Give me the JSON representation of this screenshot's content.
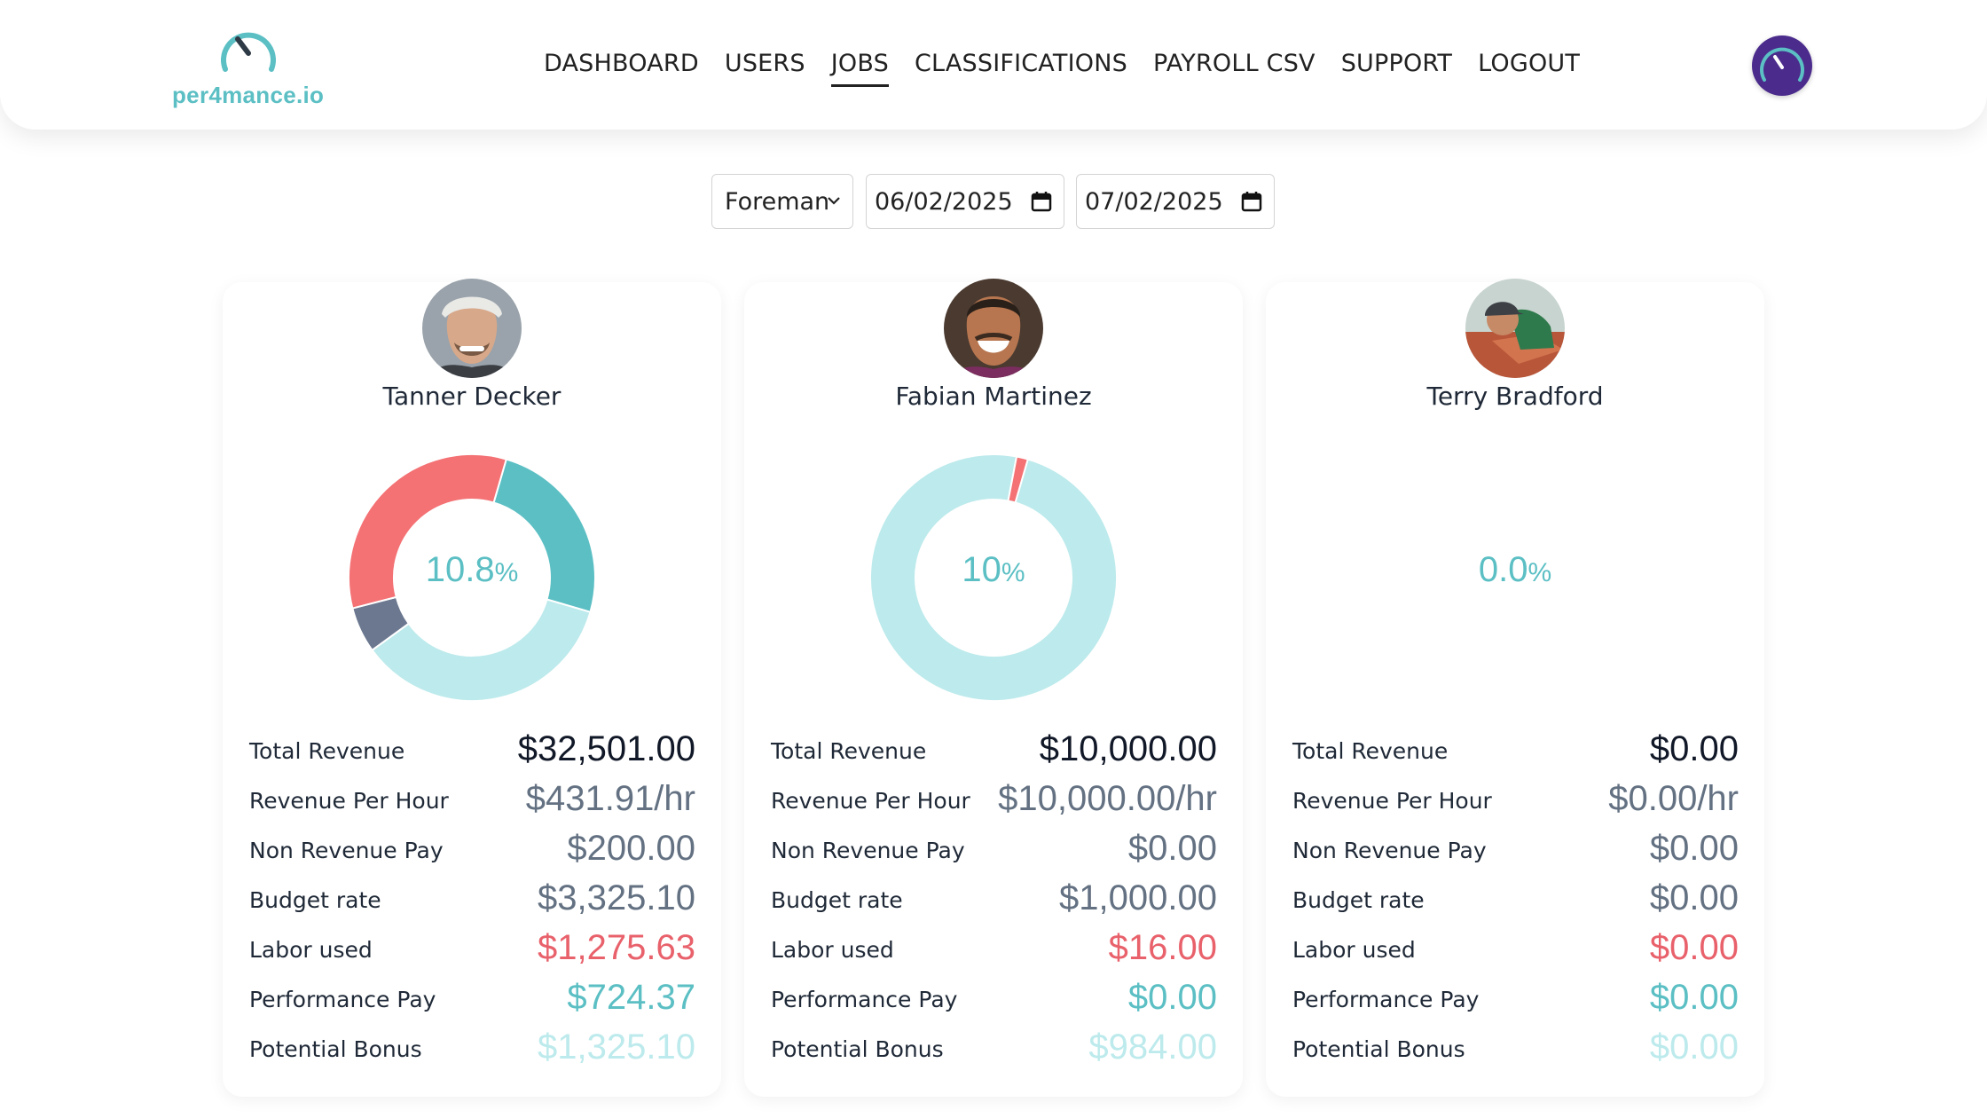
{
  "brand": {
    "name": "per4mance.io",
    "accent": "#5bbfc4"
  },
  "nav": {
    "items": [
      {
        "label": "DASHBOARD",
        "active": false
      },
      {
        "label": "USERS",
        "active": false
      },
      {
        "label": "JOBS",
        "active": true
      },
      {
        "label": "CLASSIFICATIONS",
        "active": false
      },
      {
        "label": "PAYROLL CSV",
        "active": false
      },
      {
        "label": "SUPPORT",
        "active": false
      },
      {
        "label": "LOGOUT",
        "active": false
      }
    ]
  },
  "filters": {
    "role": "Foreman",
    "start_date": "06/02/2025",
    "end_date": "07/02/2025"
  },
  "colors": {
    "teal": "#5bbfc4",
    "light_teal": "#bdeaec",
    "red": "#f47174",
    "slate": "#6b7890"
  },
  "cards": [
    {
      "name": "Tanner Decker",
      "percent": "10.8",
      "percent_unit": "%",
      "donut": [
        {
          "segment": "performance",
          "fraction": 0.25,
          "color": "#5bbfc4"
        },
        {
          "segment": "remaining",
          "fraction": 0.355,
          "color": "#bdeaec"
        },
        {
          "segment": "non_revenue",
          "fraction": 0.06,
          "color": "#6b7890"
        },
        {
          "segment": "labor",
          "fraction": 0.335,
          "color": "#f47174"
        }
      ],
      "stats": {
        "total_revenue": {
          "label": "Total Revenue",
          "value": "$32,501.00"
        },
        "revenue_per_hour": {
          "label": "Revenue Per Hour",
          "value": "$431.91/hr"
        },
        "non_revenue_pay": {
          "label": "Non Revenue Pay",
          "value": "$200.00"
        },
        "budget_rate": {
          "label": "Budget rate",
          "value": "$3,325.10"
        },
        "labor_used": {
          "label": "Labor used",
          "value": "$1,275.63"
        },
        "performance_pay": {
          "label": "Performance Pay",
          "value": "$724.37"
        },
        "potential_bonus": {
          "label": "Potential Bonus",
          "value": "$1,325.10"
        }
      }
    },
    {
      "name": "Fabian Martinez",
      "percent": "10",
      "percent_unit": "%",
      "donut": [
        {
          "segment": "remaining",
          "fraction": 0.985,
          "color": "#bdeaec"
        },
        {
          "segment": "labor",
          "fraction": 0.015,
          "color": "#f47174"
        }
      ],
      "stats": {
        "total_revenue": {
          "label": "Total Revenue",
          "value": "$10,000.00"
        },
        "revenue_per_hour": {
          "label": "Revenue Per Hour",
          "value": "$10,000.00/hr"
        },
        "non_revenue_pay": {
          "label": "Non Revenue Pay",
          "value": "$0.00"
        },
        "budget_rate": {
          "label": "Budget rate",
          "value": "$1,000.00"
        },
        "labor_used": {
          "label": "Labor used",
          "value": "$16.00"
        },
        "performance_pay": {
          "label": "Performance Pay",
          "value": "$0.00"
        },
        "potential_bonus": {
          "label": "Potential Bonus",
          "value": "$984.00"
        }
      }
    },
    {
      "name": "Terry Bradford",
      "percent": "0.0",
      "percent_unit": "%",
      "donut": [],
      "stats": {
        "total_revenue": {
          "label": "Total Revenue",
          "value": "$0.00"
        },
        "revenue_per_hour": {
          "label": "Revenue Per Hour",
          "value": "$0.00/hr"
        },
        "non_revenue_pay": {
          "label": "Non Revenue Pay",
          "value": "$0.00"
        },
        "budget_rate": {
          "label": "Budget rate",
          "value": "$0.00"
        },
        "labor_used": {
          "label": "Labor used",
          "value": "$0.00"
        },
        "performance_pay": {
          "label": "Performance Pay",
          "value": "$0.00"
        },
        "potential_bonus": {
          "label": "Potential Bonus",
          "value": "$0.00"
        }
      }
    }
  ],
  "icons": {
    "logo": "speedometer-icon",
    "profile": "speedometer-avatar-icon",
    "select": "chevron-down-icon",
    "date": "calendar-icon"
  }
}
